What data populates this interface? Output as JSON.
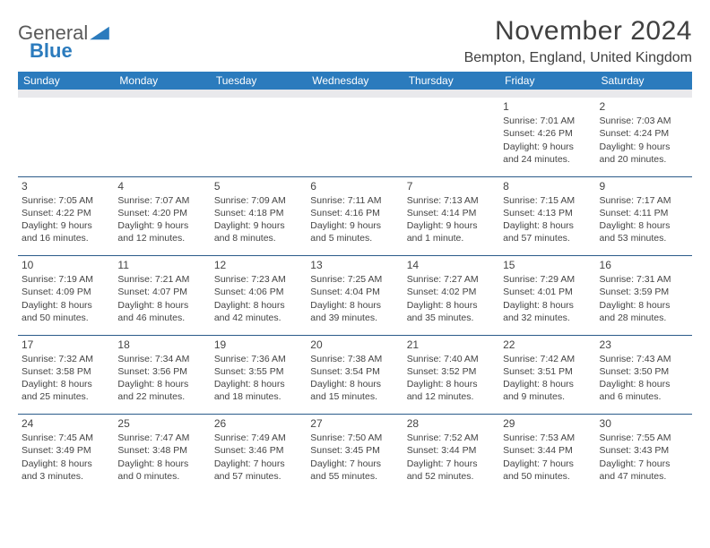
{
  "brand": {
    "part1": "General",
    "part2": "Blue"
  },
  "title": "November 2024",
  "location": "Bempton, England, United Kingdom",
  "colors": {
    "header_bg": "#2b7bbd",
    "header_text": "#ffffff",
    "spacer_bg": "#e9e9ec",
    "week_sep": "#2b5b8a",
    "text": "#3a3a3a",
    "logo_gray": "#5a5a5a",
    "logo_blue": "#2b7bbd"
  },
  "day_headers": [
    "Sunday",
    "Monday",
    "Tuesday",
    "Wednesday",
    "Thursday",
    "Friday",
    "Saturday"
  ],
  "weeks": [
    [
      null,
      null,
      null,
      null,
      null,
      {
        "n": "1",
        "sr": "7:01 AM",
        "ss": "4:26 PM",
        "dl": "9 hours and 24 minutes."
      },
      {
        "n": "2",
        "sr": "7:03 AM",
        "ss": "4:24 PM",
        "dl": "9 hours and 20 minutes."
      }
    ],
    [
      {
        "n": "3",
        "sr": "7:05 AM",
        "ss": "4:22 PM",
        "dl": "9 hours and 16 minutes."
      },
      {
        "n": "4",
        "sr": "7:07 AM",
        "ss": "4:20 PM",
        "dl": "9 hours and 12 minutes."
      },
      {
        "n": "5",
        "sr": "7:09 AM",
        "ss": "4:18 PM",
        "dl": "9 hours and 8 minutes."
      },
      {
        "n": "6",
        "sr": "7:11 AM",
        "ss": "4:16 PM",
        "dl": "9 hours and 5 minutes."
      },
      {
        "n": "7",
        "sr": "7:13 AM",
        "ss": "4:14 PM",
        "dl": "9 hours and 1 minute."
      },
      {
        "n": "8",
        "sr": "7:15 AM",
        "ss": "4:13 PM",
        "dl": "8 hours and 57 minutes."
      },
      {
        "n": "9",
        "sr": "7:17 AM",
        "ss": "4:11 PM",
        "dl": "8 hours and 53 minutes."
      }
    ],
    [
      {
        "n": "10",
        "sr": "7:19 AM",
        "ss": "4:09 PM",
        "dl": "8 hours and 50 minutes."
      },
      {
        "n": "11",
        "sr": "7:21 AM",
        "ss": "4:07 PM",
        "dl": "8 hours and 46 minutes."
      },
      {
        "n": "12",
        "sr": "7:23 AM",
        "ss": "4:06 PM",
        "dl": "8 hours and 42 minutes."
      },
      {
        "n": "13",
        "sr": "7:25 AM",
        "ss": "4:04 PM",
        "dl": "8 hours and 39 minutes."
      },
      {
        "n": "14",
        "sr": "7:27 AM",
        "ss": "4:02 PM",
        "dl": "8 hours and 35 minutes."
      },
      {
        "n": "15",
        "sr": "7:29 AM",
        "ss": "4:01 PM",
        "dl": "8 hours and 32 minutes."
      },
      {
        "n": "16",
        "sr": "7:31 AM",
        "ss": "3:59 PM",
        "dl": "8 hours and 28 minutes."
      }
    ],
    [
      {
        "n": "17",
        "sr": "7:32 AM",
        "ss": "3:58 PM",
        "dl": "8 hours and 25 minutes."
      },
      {
        "n": "18",
        "sr": "7:34 AM",
        "ss": "3:56 PM",
        "dl": "8 hours and 22 minutes."
      },
      {
        "n": "19",
        "sr": "7:36 AM",
        "ss": "3:55 PM",
        "dl": "8 hours and 18 minutes."
      },
      {
        "n": "20",
        "sr": "7:38 AM",
        "ss": "3:54 PM",
        "dl": "8 hours and 15 minutes."
      },
      {
        "n": "21",
        "sr": "7:40 AM",
        "ss": "3:52 PM",
        "dl": "8 hours and 12 minutes."
      },
      {
        "n": "22",
        "sr": "7:42 AM",
        "ss": "3:51 PM",
        "dl": "8 hours and 9 minutes."
      },
      {
        "n": "23",
        "sr": "7:43 AM",
        "ss": "3:50 PM",
        "dl": "8 hours and 6 minutes."
      }
    ],
    [
      {
        "n": "24",
        "sr": "7:45 AM",
        "ss": "3:49 PM",
        "dl": "8 hours and 3 minutes."
      },
      {
        "n": "25",
        "sr": "7:47 AM",
        "ss": "3:48 PM",
        "dl": "8 hours and 0 minutes."
      },
      {
        "n": "26",
        "sr": "7:49 AM",
        "ss": "3:46 PM",
        "dl": "7 hours and 57 minutes."
      },
      {
        "n": "27",
        "sr": "7:50 AM",
        "ss": "3:45 PM",
        "dl": "7 hours and 55 minutes."
      },
      {
        "n": "28",
        "sr": "7:52 AM",
        "ss": "3:44 PM",
        "dl": "7 hours and 52 minutes."
      },
      {
        "n": "29",
        "sr": "7:53 AM",
        "ss": "3:44 PM",
        "dl": "7 hours and 50 minutes."
      },
      {
        "n": "30",
        "sr": "7:55 AM",
        "ss": "3:43 PM",
        "dl": "7 hours and 47 minutes."
      }
    ]
  ],
  "labels": {
    "sunrise": "Sunrise:",
    "sunset": "Sunset:",
    "daylight": "Daylight:"
  }
}
